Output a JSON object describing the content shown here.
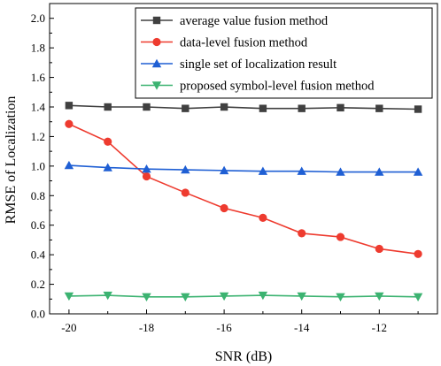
{
  "chart_data": {
    "type": "line",
    "xlabel": "SNR (dB)",
    "ylabel": "RMSE of Localization",
    "xlim": [
      -20.5,
      -10.5
    ],
    "ylim": [
      0,
      2.1
    ],
    "xticks": [
      -20,
      -18,
      -16,
      -14,
      -12
    ],
    "xtick_labels": [
      "-20",
      "-18",
      "-16",
      "-14",
      "-12"
    ],
    "yticks": [
      0.0,
      0.2,
      0.4,
      0.6,
      0.8,
      1.0,
      1.2,
      1.4,
      1.6,
      1.8,
      2.0
    ],
    "ytick_labels": [
      "0.0",
      "0.2",
      "0.4",
      "0.6",
      "0.8",
      "1.0",
      "1.2",
      "1.4",
      "1.6",
      "1.8",
      "2.0"
    ],
    "grid": false,
    "legend_position": "top-right",
    "x": [
      -20,
      -19,
      -18,
      -17,
      -16,
      -15,
      -14,
      -13,
      -12,
      -11
    ],
    "series": [
      {
        "name": "average value fusion method",
        "color": "#404040",
        "marker": "square",
        "values": [
          1.41,
          1.4,
          1.4,
          1.39,
          1.4,
          1.39,
          1.39,
          1.395,
          1.39,
          1.385
        ]
      },
      {
        "name": "data-level fusion method",
        "color": "#ee3b2f",
        "marker": "circle",
        "values": [
          1.285,
          1.165,
          0.93,
          0.82,
          0.715,
          0.65,
          0.545,
          0.52,
          0.44,
          0.405
        ]
      },
      {
        "name": "single set of localization result",
        "color": "#1f5fd4",
        "marker": "triangle-up",
        "values": [
          1.005,
          0.99,
          0.98,
          0.975,
          0.97,
          0.965,
          0.965,
          0.96,
          0.96,
          0.96
        ]
      },
      {
        "name": "proposed symbol-level fusion method",
        "color": "#3cb371",
        "marker": "triangle-down",
        "values": [
          0.12,
          0.125,
          0.115,
          0.115,
          0.12,
          0.125,
          0.12,
          0.115,
          0.12,
          0.115
        ]
      }
    ]
  }
}
